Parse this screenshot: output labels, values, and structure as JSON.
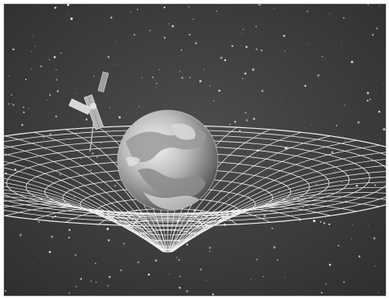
{
  "scene": {
    "subject": "earth-in-spacetime-grid",
    "palette": {
      "space": "#3a3a3a",
      "space_light": "#4a4a4a",
      "grid": "#f2f2f2",
      "earth_light": "#e6e6e6",
      "earth_dark": "#6a6a6a",
      "satellite": "#bdbdbd"
    },
    "icons": [
      "earth-icon",
      "satellite-icon",
      "spacetime-grid-icon",
      "star-icon"
    ]
  }
}
